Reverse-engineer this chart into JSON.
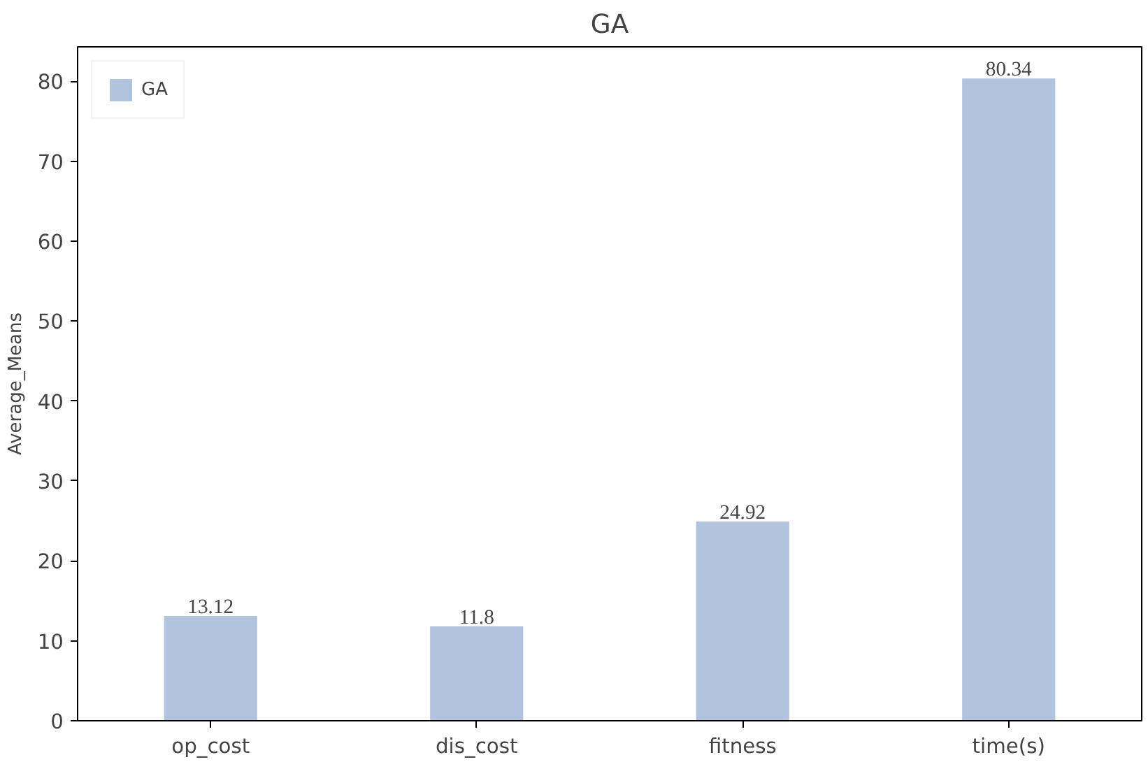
{
  "chart_data": {
    "type": "bar",
    "title": "GA",
    "ylabel": "Average_Means",
    "categories": [
      "op_cost",
      "dis_cost",
      "fitness",
      "time(s)"
    ],
    "series": [
      {
        "name": "GA",
        "color": "#b0c4de",
        "values": [
          13.12,
          11.8,
          24.92,
          80.34
        ]
      }
    ],
    "ylim": [
      0,
      84.3
    ],
    "yticks": [
      0,
      10,
      20,
      30,
      40,
      50,
      60,
      70,
      80
    ],
    "data_labels": true,
    "legend": "top left",
    "grid": false
  }
}
